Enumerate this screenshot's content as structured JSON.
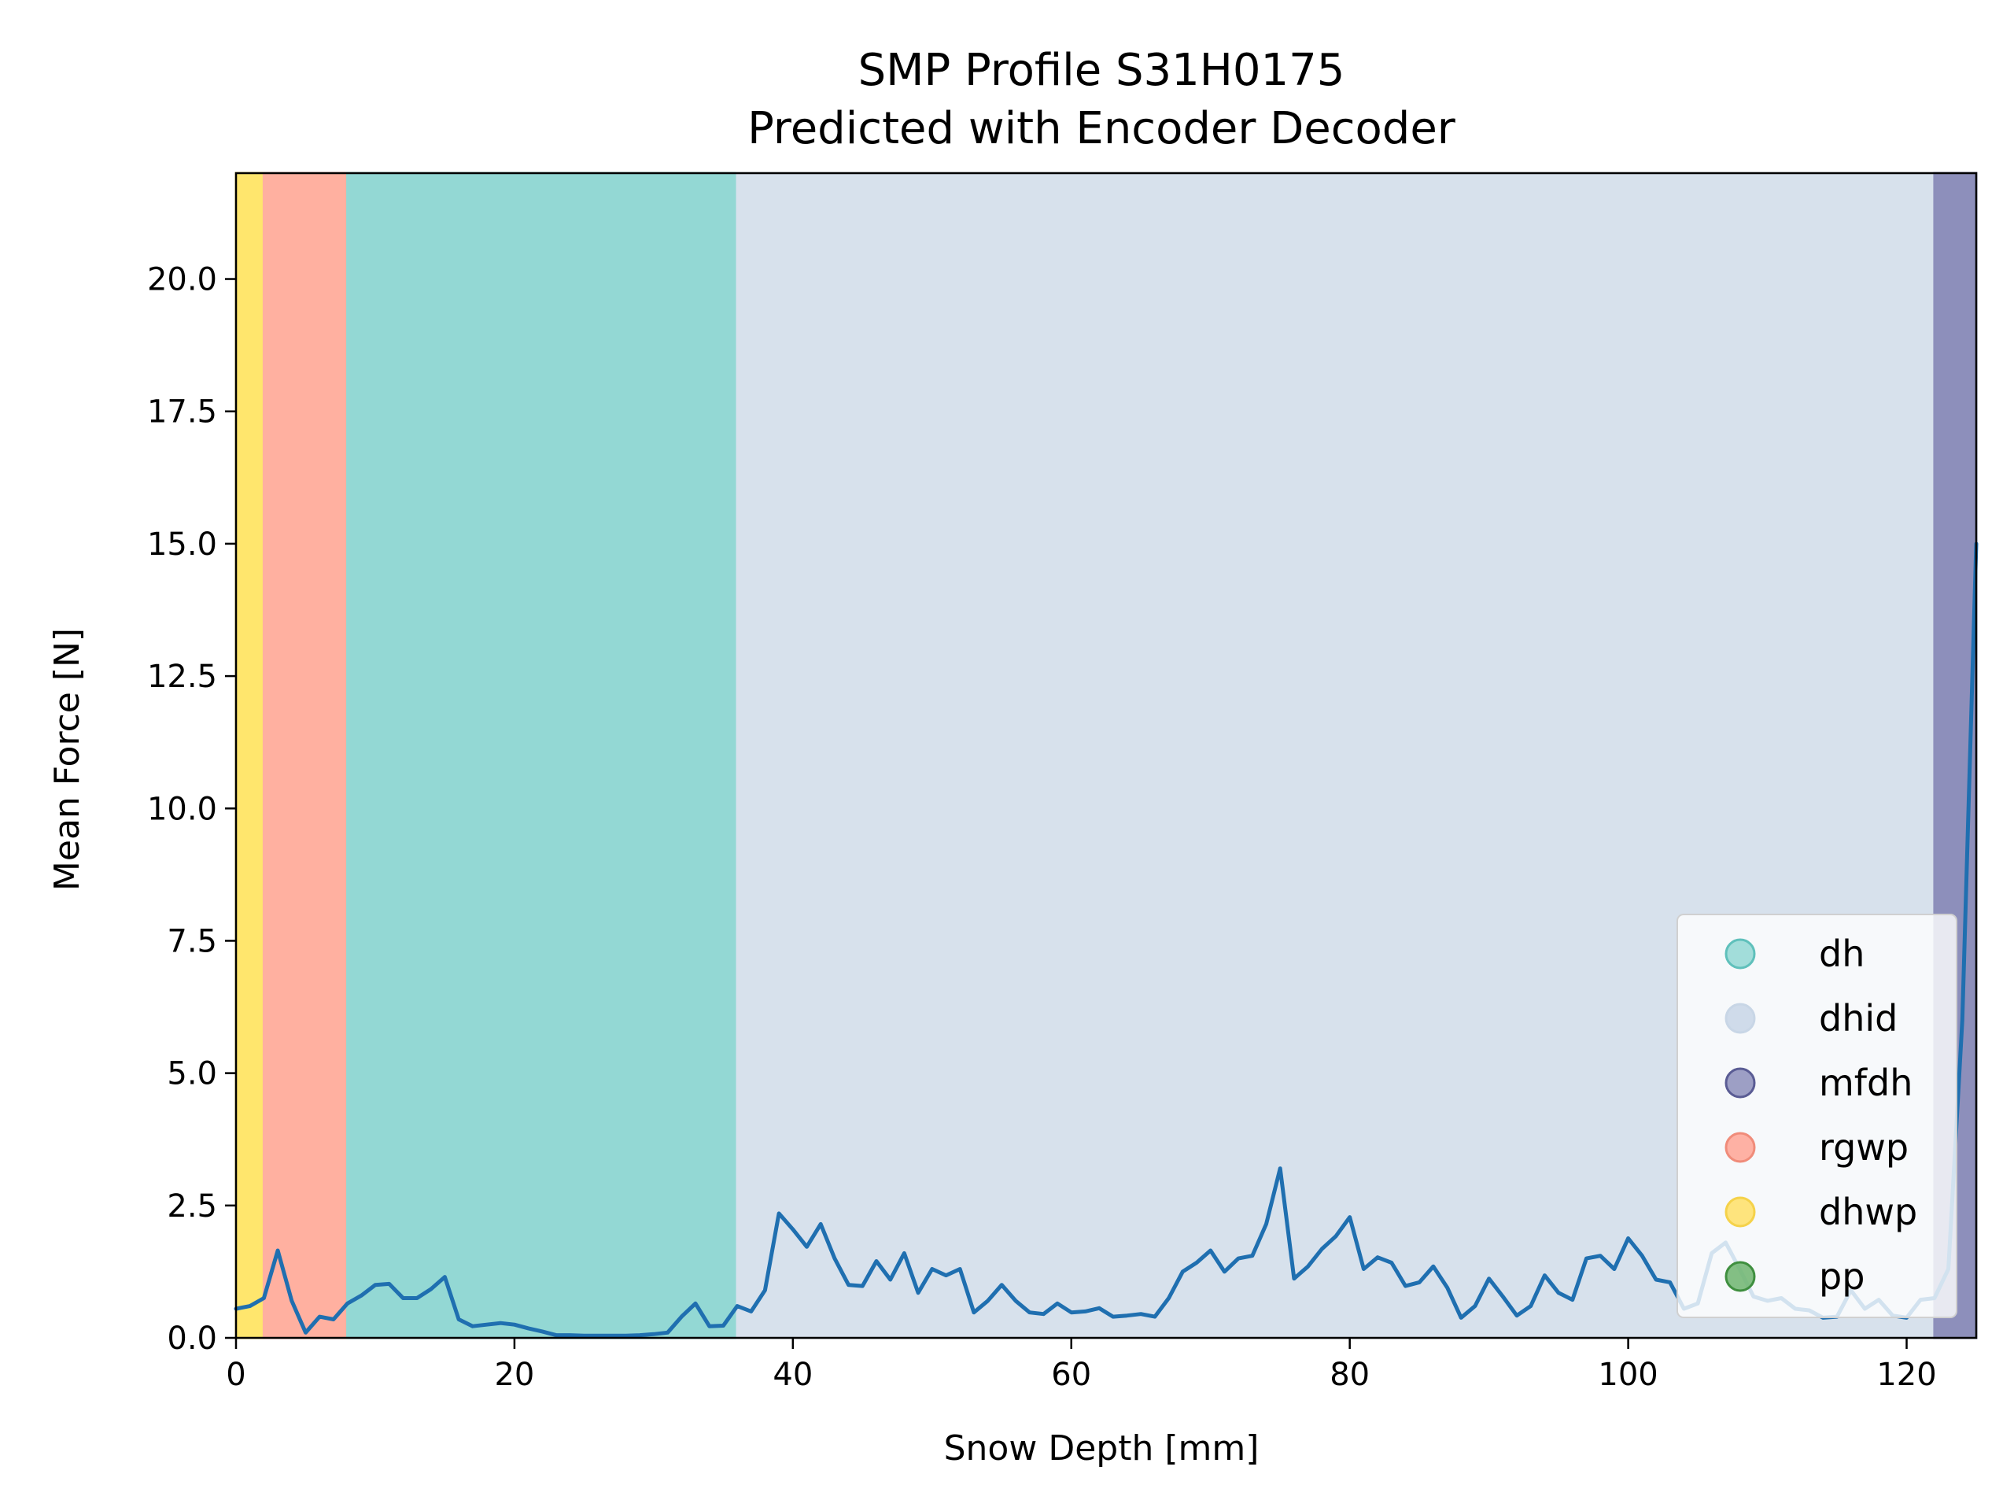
{
  "chart_data": {
    "type": "line",
    "title": "SMP Profile S31H0175",
    "subtitle": "Predicted with Encoder Decoder",
    "xlabel": "Snow Depth [mm]",
    "ylabel": "Mean Force [N]",
    "xlim": [
      0,
      125
    ],
    "ylim": [
      0,
      22
    ],
    "xticks": [
      0,
      20,
      40,
      60,
      80,
      100,
      120
    ],
    "xtick_labels": [
      "0",
      "20",
      "40",
      "60",
      "80",
      "100",
      "120"
    ],
    "yticks": [
      0,
      2.5,
      5,
      7.5,
      10,
      12.5,
      15,
      17.5,
      20
    ],
    "ytick_labels": [
      "0.0",
      "2.5",
      "5.0",
      "7.5",
      "10.0",
      "12.5",
      "15.0",
      "17.5",
      "20.0"
    ],
    "grid": false,
    "legend_position": "lower-right",
    "regions": [
      {
        "label": "dhwp",
        "start": 0,
        "end": 2,
        "color": "#ffe66d"
      },
      {
        "label": "rgwp",
        "start": 2,
        "end": 8,
        "color": "#ffb0a0"
      },
      {
        "label": "dh",
        "start": 8,
        "end": 36,
        "color": "#93d8d4"
      },
      {
        "label": "dhid",
        "start": 36,
        "end": 122,
        "color": "#d7e1ec"
      },
      {
        "label": "mfdh",
        "start": 122,
        "end": 125,
        "color": "#8d8fbb"
      }
    ],
    "legend": [
      {
        "label": "dh",
        "color": "#93d8d4",
        "edge": "#5fc0bb"
      },
      {
        "label": "dhid",
        "color": "#c8d6e6",
        "edge": "#c8d6e6"
      },
      {
        "label": "mfdh",
        "color": "#8d8fbb",
        "edge": "#5a5c94"
      },
      {
        "label": "rgwp",
        "color": "#ffa594",
        "edge": "#f08c7a"
      },
      {
        "label": "dhwp",
        "color": "#ffe066",
        "edge": "#f5d24a"
      },
      {
        "label": "pp",
        "color": "#6fb56f",
        "edge": "#3f8f3f"
      }
    ],
    "series": [
      {
        "color": "#1f6fb0",
        "x": [
          0,
          1,
          2,
          3,
          4,
          5,
          6,
          7,
          8,
          9,
          10,
          11,
          12,
          13,
          14,
          15,
          16,
          17,
          18,
          19,
          20,
          21,
          22,
          23,
          24,
          25,
          26,
          27,
          28,
          29,
          30,
          31,
          32,
          33,
          34,
          35,
          36,
          37,
          38,
          39,
          40,
          41,
          42,
          43,
          44,
          45,
          46,
          47,
          48,
          49,
          50,
          51,
          52,
          53,
          54,
          55,
          56,
          57,
          58,
          59,
          60,
          61,
          62,
          63,
          64,
          65,
          66,
          67,
          68,
          69,
          70,
          71,
          72,
          73,
          74,
          75,
          76,
          77,
          78,
          79,
          80,
          81,
          82,
          83,
          84,
          85,
          86,
          87,
          88,
          89,
          90,
          91,
          92,
          93,
          94,
          95,
          96,
          97,
          98,
          99,
          100,
          101,
          102,
          103,
          104,
          105,
          106,
          107,
          108,
          109,
          110,
          111,
          112,
          113,
          114,
          115,
          116,
          117,
          118,
          119,
          120,
          121,
          122,
          123,
          124,
          125
        ],
        "y": [
          0.55,
          0.6,
          0.75,
          1.65,
          0.7,
          0.1,
          0.4,
          0.35,
          0.65,
          0.8,
          1.0,
          1.02,
          0.75,
          0.75,
          0.92,
          1.15,
          0.35,
          0.22,
          0.25,
          0.28,
          0.25,
          0.18,
          0.12,
          0.05,
          0.05,
          0.04,
          0.04,
          0.04,
          0.04,
          0.05,
          0.07,
          0.1,
          0.4,
          0.65,
          0.22,
          0.23,
          0.6,
          0.5,
          0.9,
          2.35,
          2.05,
          1.72,
          2.15,
          1.5,
          1.0,
          0.98,
          1.45,
          1.1,
          1.6,
          0.85,
          1.3,
          1.18,
          1.3,
          0.48,
          0.7,
          1.0,
          0.7,
          0.48,
          0.45,
          0.65,
          0.48,
          0.5,
          0.56,
          0.4,
          0.42,
          0.45,
          0.4,
          0.75,
          1.25,
          1.42,
          1.65,
          1.25,
          1.5,
          1.55,
          2.15,
          3.2,
          1.12,
          1.35,
          1.68,
          1.92,
          2.28,
          1.3,
          1.52,
          1.42,
          0.98,
          1.05,
          1.35,
          0.95,
          0.38,
          0.6,
          1.12,
          0.78,
          0.42,
          0.6,
          1.18,
          0.85,
          0.72,
          1.5,
          1.55,
          1.3,
          1.88,
          1.55,
          1.1,
          1.05,
          0.55,
          0.65,
          1.6,
          1.8,
          1.3,
          0.78,
          0.7,
          0.75,
          0.55,
          0.52,
          0.38,
          0.4,
          0.9,
          0.55,
          0.72,
          0.42,
          0.38,
          0.72,
          0.75,
          1.3,
          6.0,
          15.0
        ]
      }
    ]
  }
}
